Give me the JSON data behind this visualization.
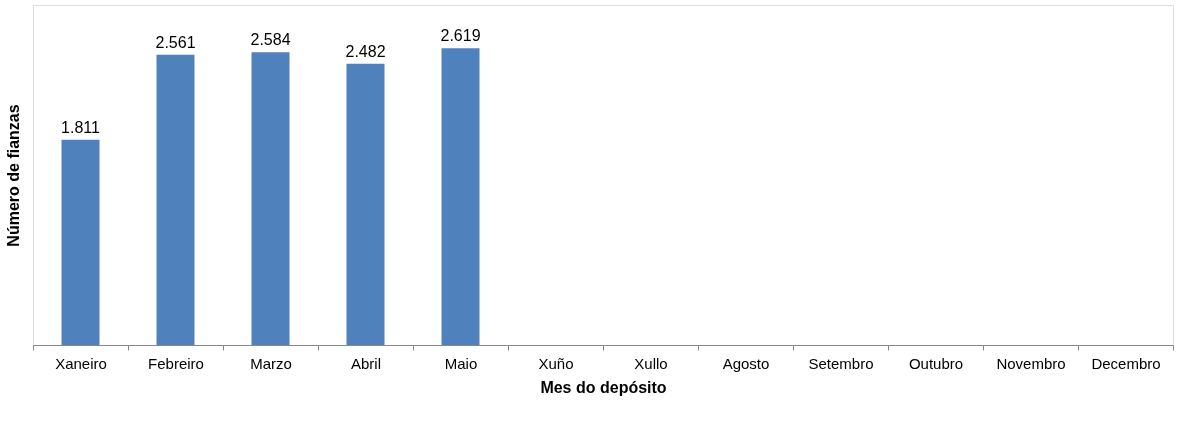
{
  "chart_data": {
    "type": "bar",
    "xlabel": "Mes do depósito",
    "ylabel": "Número de fianzas",
    "categories": [
      "Xaneiro",
      "Febreiro",
      "Marzo",
      "Abril",
      "Maio",
      "Xuño",
      "Xullo",
      "Agosto",
      "Setembro",
      "Outubro",
      "Novembro",
      "Decembro"
    ],
    "values": [
      1811,
      2561,
      2584,
      2482,
      2619,
      null,
      null,
      null,
      null,
      null,
      null,
      null
    ],
    "value_labels": [
      "1.811",
      "2.561",
      "2.584",
      "2.482",
      "2.619",
      null,
      null,
      null,
      null,
      null,
      null,
      null
    ],
    "color": "#4f81bd",
    "ylim": [
      0,
      3000
    ],
    "tick_labels": "x",
    "grid": false
  }
}
